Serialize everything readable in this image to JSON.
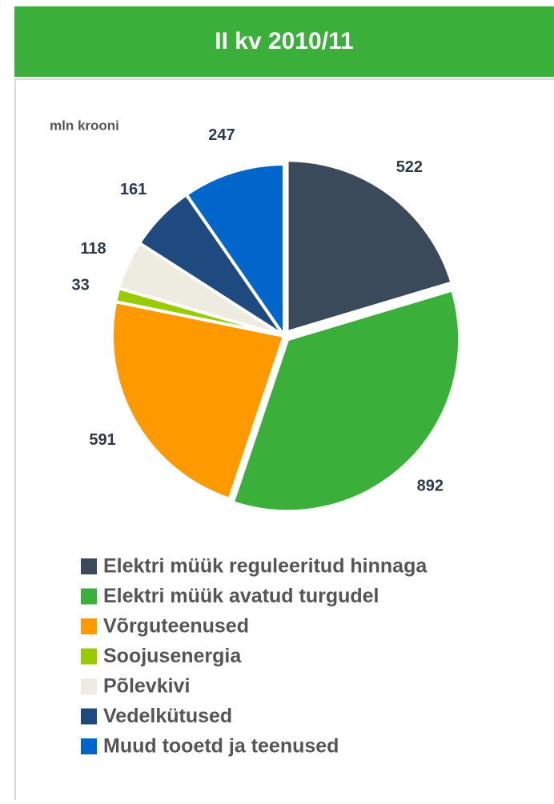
{
  "chart_data": {
    "type": "pie",
    "title": "II kv 2010/11",
    "unit_label": "mln krooni",
    "categories": [
      "Elektri müük reguleeritud hinnaga",
      "Elektri müük avatud turgudel",
      "Võrguteenused",
      "Soojusenergia",
      "Põlevkivi",
      "Vedelkütused",
      "Muud tooetd ja teenused"
    ],
    "values": [
      522,
      892,
      591,
      33,
      118,
      161,
      247
    ],
    "colors": [
      "#3a4a5a",
      "#3ab03a",
      "#ff9900",
      "#99cc00",
      "#eeebe0",
      "#1f4a80",
      "#0066cc"
    ],
    "legend": "bottom"
  }
}
